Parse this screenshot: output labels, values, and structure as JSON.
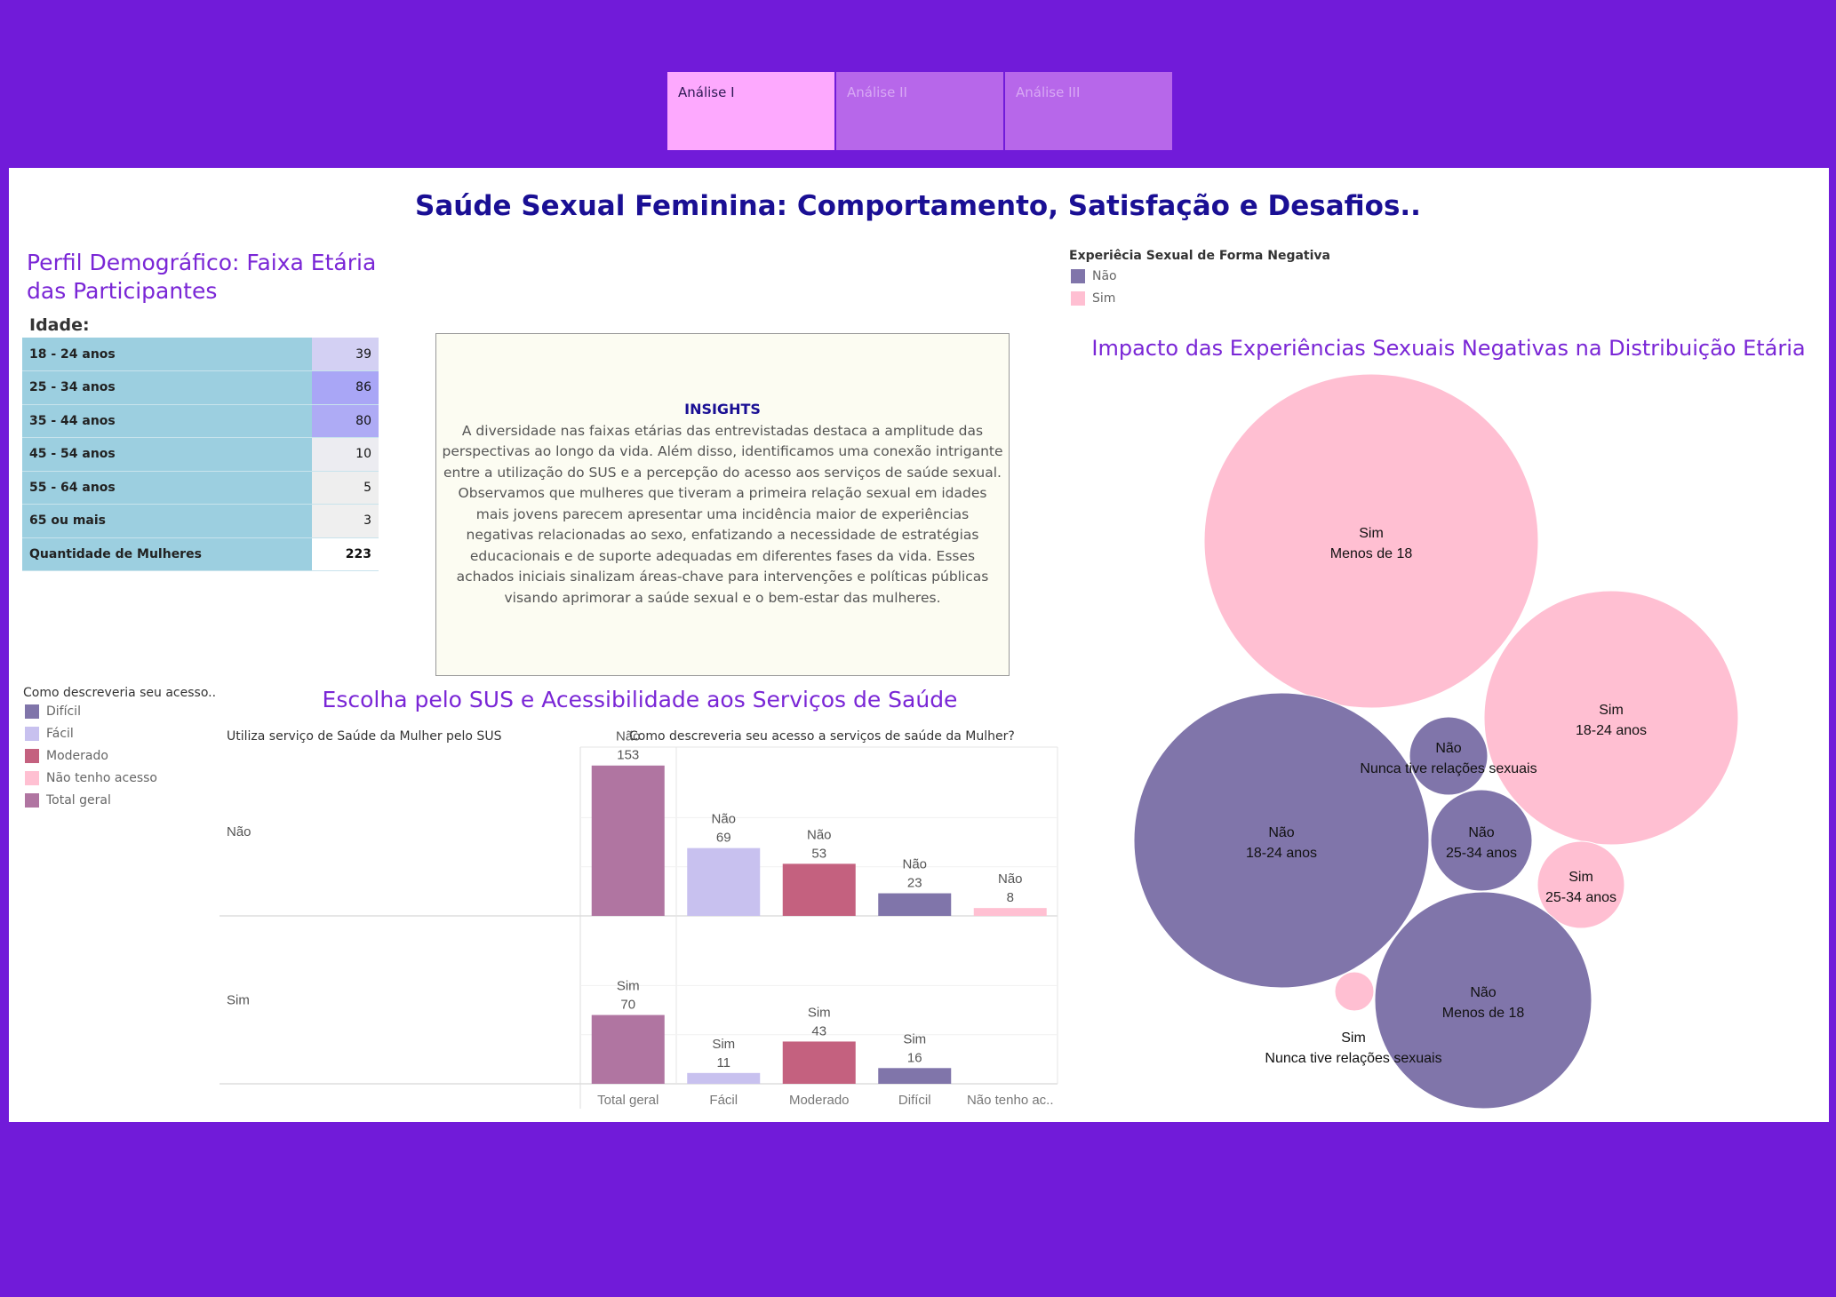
{
  "tabs": [
    {
      "label": "Análise I",
      "active": true
    },
    {
      "label": "Análise II",
      "active": false
    },
    {
      "label": "Análise III",
      "active": false
    }
  ],
  "title": "Saúde Sexual Feminina: Comportamento, Satisfação e Desafios..",
  "age_profile": {
    "title": "Perfil Demográfico: Faixa Etária das Participantes",
    "header": "Idade:",
    "rows": [
      {
        "label": "18 - 24 anos",
        "value": "39",
        "color": "#d3d0f3"
      },
      {
        "label": "25 - 34 anos",
        "value": "86",
        "color": "#a9a6f6"
      },
      {
        "label": "35 - 44 anos",
        "value": "80",
        "color": "#aeabf5"
      },
      {
        "label": "45 - 54 anos",
        "value": "10",
        "color": "#ececf1"
      },
      {
        "label": "55 - 64 anos",
        "value": "5",
        "color": "#eeeeee"
      },
      {
        "label": "65 ou mais",
        "value": "3",
        "color": "#efefef"
      }
    ],
    "total_label": "Quantidade de Mulheres",
    "total_value": "223"
  },
  "insights": {
    "title": "INSIGHTS",
    "body": "A diversidade nas faixas etárias das entrevistadas destaca a amplitude das perspectivas ao longo da vida. Além disso, identificamos uma conexão intrigante entre a utilização do SUS e a percepção do acesso aos serviços de saúde sexual. Observamos que mulheres que tiveram a primeira relação sexual em idades mais jovens parecem apresentar uma incidência maior de experiências negativas relacionadas ao sexo, enfatizando a necessidade de estratégias educacionais e de suporte adequadas em diferentes fases da vida. Esses achados iniciais sinalizam áreas-chave para intervenções e políticas públicas visando aprimorar a saúde sexual e o bem-estar das mulheres."
  },
  "access_legend": {
    "title": "Como descreveria seu acesso..",
    "items": [
      {
        "label": "Difícil",
        "color": "#8075aa"
      },
      {
        "label": "Fácil",
        "color": "#c8c1ef"
      },
      {
        "label": "Moderado",
        "color": "#c4617f"
      },
      {
        "label": "Não tenho acesso",
        "color": "#ffc0d2"
      },
      {
        "label": "Total geral",
        "color": "#b075a1"
      }
    ]
  },
  "negative_legend": {
    "title": "Experiêcia Sexual de Forma Negativa",
    "items": [
      {
        "label": "Não",
        "color": "#8075aa"
      },
      {
        "label": "Sim",
        "color": "#ffbfd2"
      }
    ]
  },
  "chart_data": [
    {
      "type": "bar",
      "title": "Escolha pelo SUS e Acessibilidade aos Serviços de Saúde",
      "row_header": "Utiliza serviço de Saúde da Mulher pelo SUS",
      "column_header": "Como descreveria seu acesso a serviços de saúde da Mulher?",
      "rows": [
        "Não",
        "Sim"
      ],
      "categories": [
        "Total geral",
        "Fácil",
        "Moderado",
        "Difícil",
        "Não tenho ac.."
      ],
      "colors": [
        "#b075a1",
        "#c8c1ef",
        "#c4617f",
        "#8075aa",
        "#ffc0d2"
      ],
      "series": [
        {
          "name": "Não",
          "values": [
            153,
            69,
            53,
            23,
            8
          ]
        },
        {
          "name": "Sim",
          "values": [
            70,
            11,
            43,
            16,
            null
          ]
        }
      ],
      "ylim": [
        0,
        160
      ]
    },
    {
      "type": "bubble",
      "title": "Impacto das Experiências Sexuais Negativas na Distribuição Etária",
      "bubbles": [
        {
          "negative": "Sim",
          "age": "Menos de 18",
          "color": "#ffbfd2"
        },
        {
          "negative": "Sim",
          "age": "18-24 anos",
          "color": "#ffbfd2"
        },
        {
          "negative": "Não",
          "age": "Nunca tive relações sexuais",
          "color": "#8075aa"
        },
        {
          "negative": "Não",
          "age": "18-24 anos",
          "color": "#8075aa"
        },
        {
          "negative": "Não",
          "age": "25-34 anos",
          "color": "#8075aa"
        },
        {
          "negative": "Sim",
          "age": "25-34 anos",
          "color": "#ffbfd2"
        },
        {
          "negative": "Sim",
          "age": "Nunca tive relações sexuais",
          "color": "#ffbfd2"
        },
        {
          "negative": "Não",
          "age": "Menos de 18",
          "color": "#8075aa"
        }
      ]
    }
  ]
}
